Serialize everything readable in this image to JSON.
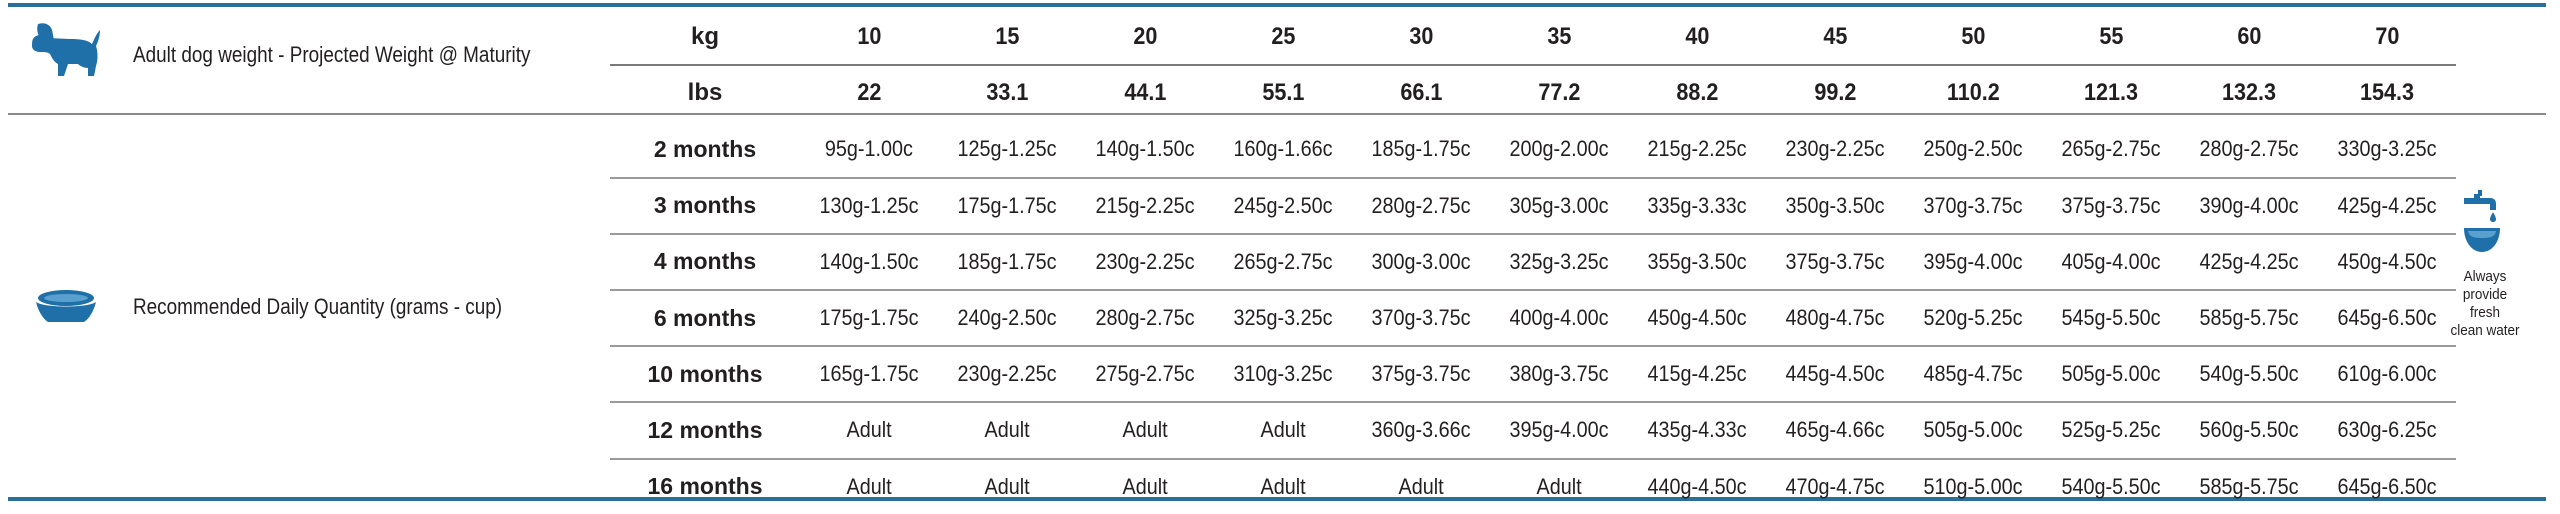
{
  "header": {
    "weight_label": "Adult dog weight - Projected Weight @ Maturity",
    "quantity_label": "Recommended Daily Quantity (grams - cup)"
  },
  "units": {
    "kg": "kg",
    "lbs": "lbs"
  },
  "kg_values": [
    "10",
    "15",
    "20",
    "25",
    "30",
    "35",
    "40",
    "45",
    "50",
    "55",
    "60",
    "70"
  ],
  "lbs_values": [
    "22",
    "33.1",
    "44.1",
    "55.1",
    "66.1",
    "77.2",
    "88.2",
    "99.2",
    "110.2",
    "121.3",
    "132.3",
    "154.3"
  ],
  "rows": [
    {
      "age": "2 months",
      "cells": [
        "95g-1.00c",
        "125g-1.25c",
        "140g-1.50c",
        "160g-1.66c",
        "185g-1.75c",
        "200g-2.00c",
        "215g-2.25c",
        "230g-2.25c",
        "250g-2.50c",
        "265g-2.75c",
        "280g-2.75c",
        "330g-3.25c"
      ]
    },
    {
      "age": "3 months",
      "cells": [
        "130g-1.25c",
        "175g-1.75c",
        "215g-2.25c",
        "245g-2.50c",
        "280g-2.75c",
        "305g-3.00c",
        "335g-3.33c",
        "350g-3.50c",
        "370g-3.75c",
        "375g-3.75c",
        "390g-4.00c",
        "425g-4.25c"
      ]
    },
    {
      "age": "4 months",
      "cells": [
        "140g-1.50c",
        "185g-1.75c",
        "230g-2.25c",
        "265g-2.75c",
        "300g-3.00c",
        "325g-3.25c",
        "355g-3.50c",
        "375g-3.75c",
        "395g-4.00c",
        "405g-4.00c",
        "425g-4.25c",
        "450g-4.50c"
      ]
    },
    {
      "age": "6 months",
      "cells": [
        "175g-1.75c",
        "240g-2.50c",
        "280g-2.75c",
        "325g-3.25c",
        "370g-3.75c",
        "400g-4.00c",
        "450g-4.50c",
        "480g-4.75c",
        "520g-5.25c",
        "545g-5.50c",
        "585g-5.75c",
        "645g-6.50c"
      ]
    },
    {
      "age": "10 months",
      "cells": [
        "165g-1.75c",
        "230g-2.25c",
        "275g-2.75c",
        "310g-3.25c",
        "375g-3.75c",
        "380g-3.75c",
        "415g-4.25c",
        "445g-4.50c",
        "485g-4.75c",
        "505g-5.00c",
        "540g-5.50c",
        "610g-6.00c"
      ]
    },
    {
      "age": "12 months",
      "cells": [
        "Adult",
        "Adult",
        "Adult",
        "Adult",
        "360g-3.66c",
        "395g-4.00c",
        "435g-4.33c",
        "465g-4.66c",
        "505g-5.00c",
        "525g-5.25c",
        "560g-5.50c",
        "630g-6.25c"
      ]
    },
    {
      "age": "16 months",
      "cells": [
        "Adult",
        "Adult",
        "Adult",
        "Adult",
        "Adult",
        "Adult",
        "440g-4.50c",
        "470g-4.75c",
        "510g-5.00c",
        "540g-5.50c",
        "585g-5.75c",
        "645g-6.50c"
      ]
    }
  ],
  "water_note": {
    "lines": [
      "Always",
      "provide fresh",
      "clean water"
    ]
  },
  "icons": {
    "dog": "dog-icon",
    "bowl": "bowl-icon",
    "tap": "water-tap-icon"
  },
  "colors": {
    "accent": "#2a6f9a",
    "icon": "#1f6fa8",
    "text": "#231f20"
  }
}
